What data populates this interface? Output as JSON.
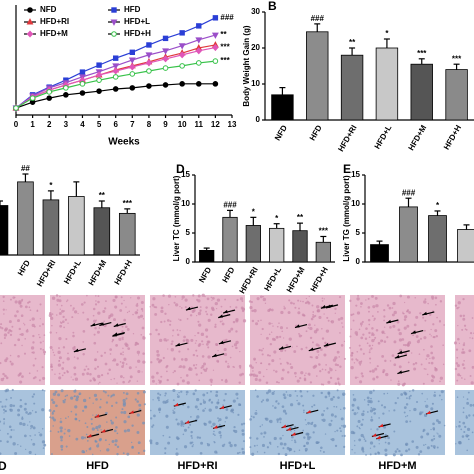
{
  "chart_data": [
    {
      "type": "line",
      "x_label": "Weeks",
      "x": [
        0,
        1,
        2,
        3,
        4,
        5,
        6,
        7,
        8,
        9,
        10,
        11,
        12
      ],
      "xlim": [
        0,
        13
      ],
      "xticks": [
        0,
        1,
        2,
        3,
        4,
        5,
        6,
        7,
        8,
        9,
        10,
        11,
        12,
        13
      ],
      "ylim": [
        15,
        45
      ],
      "series": [
        {
          "name": "NFD",
          "color": "#000000",
          "marker": "circle",
          "values": [
            16.9,
            18.5,
            19.6,
            20.5,
            21,
            21.5,
            22.1,
            22.4,
            22.9,
            23.2,
            23.5,
            23.5,
            23.5
          ]
        },
        {
          "name": "HFD",
          "color": "#2b3fd6",
          "marker": "square",
          "values": [
            16.9,
            20.5,
            22.6,
            24.5,
            26.7,
            28.6,
            30.5,
            32.1,
            34.1,
            35.9,
            37.4,
            39.3,
            41.5
          ],
          "end_label": "###"
        },
        {
          "name": "HFD+RI",
          "color": "#e0383c",
          "marker": "triangle",
          "values": [
            16.9,
            19.9,
            21.8,
            23.2,
            24.5,
            25.9,
            27.3,
            28.4,
            29.5,
            30.8,
            31.9,
            33.3,
            34.1
          ]
        },
        {
          "name": "HFD+L",
          "color": "#9b4fc9",
          "marker": "down",
          "values": [
            16.9,
            20.2,
            22.4,
            23.8,
            25.4,
            26.8,
            28.4,
            30,
            31.4,
            32.5,
            33.9,
            35.5,
            36.8
          ],
          "end_label": "**"
        },
        {
          "name": "HFD+M",
          "color": "#e056b8",
          "marker": "diamond",
          "values": [
            16.9,
            19.9,
            21.8,
            23.2,
            24.5,
            25.9,
            27,
            28.1,
            29.2,
            30.3,
            31.4,
            32.5,
            33.4
          ],
          "end_label": "***"
        },
        {
          "name": "HFD+H",
          "color": "#38c24a",
          "marker": "open",
          "values": [
            16.9,
            19.6,
            21.3,
            22.4,
            23.5,
            24.5,
            25.4,
            26.2,
            27,
            27.8,
            28.4,
            29.2,
            29.7
          ],
          "end_label": "***"
        }
      ]
    },
    {
      "type": "bar",
      "panel": "B",
      "y_label": "Body Weight Gain (g)",
      "categories": [
        "NFD",
        "HFD",
        "HFD+RI",
        "HFD+L",
        "HFD+M",
        "HFD+H"
      ],
      "values": [
        7,
        24.5,
        18,
        20,
        15.5,
        14
      ],
      "errors": [
        2,
        2.2,
        2,
        2.5,
        1.5,
        1.5
      ],
      "annotations": [
        null,
        "###",
        "**",
        "*",
        "***",
        "***"
      ],
      "colors": [
        "#000000",
        "#8c8c8c",
        "#6e6e6e",
        "#c8c8c8",
        "#555555",
        "#8a8a8a"
      ],
      "ylim": [
        0,
        30
      ],
      "yticks": [
        0,
        10,
        20,
        30
      ]
    },
    {
      "type": "bar",
      "categories": [
        null,
        "HFD",
        "HFD+RI",
        "HFD+L",
        "HFD+M",
        "HFD+H"
      ],
      "values": [
        4.4,
        6.5,
        4.9,
        5.2,
        4.2,
        3.7
      ],
      "errors": [
        0.4,
        0.7,
        0.8,
        1.3,
        0.6,
        0.4
      ],
      "annotations": [
        null,
        "##",
        "*",
        null,
        "**",
        "***"
      ],
      "colors": [
        "#000000",
        "#8c8c8c",
        "#6e6e6e",
        "#c8c8c8",
        "#555555",
        "#8a8a8a"
      ],
      "ylim": [
        0,
        8
      ]
    },
    {
      "type": "bar",
      "panel": "D",
      "y_label": "Liver TC (mmol/g port)",
      "categories": [
        "NFD",
        "HFD",
        "HFD+RI",
        "HFD+L",
        "HFD+M",
        "HFD+H"
      ],
      "values": [
        2,
        7.7,
        6.3,
        5.8,
        5.4,
        3.4
      ],
      "errors": [
        0.4,
        1.2,
        1.4,
        0.8,
        1.3,
        1
      ],
      "annotations": [
        null,
        "###",
        "*",
        "*",
        "**",
        "***"
      ],
      "colors": [
        "#000000",
        "#8c8c8c",
        "#6e6e6e",
        "#c8c8c8",
        "#555555",
        "#8a8a8a"
      ],
      "ylim": [
        0,
        15
      ],
      "yticks": [
        0,
        5,
        10,
        15
      ]
    },
    {
      "type": "bar",
      "panel": "E",
      "y_label": "Liver TG (mmol/g port)",
      "categories": [
        null,
        null,
        null,
        null
      ],
      "values": [
        3,
        9.5,
        8,
        5.6
      ],
      "errors": [
        0.6,
        1.5,
        0.8,
        0.8
      ],
      "annotations": [
        null,
        "###",
        "*",
        null
      ],
      "colors": [
        "#000000",
        "#8c8c8c",
        "#6e6e6e",
        "#c8c8c8"
      ],
      "ylim": [
        0,
        15
      ],
      "yticks": [
        0,
        5,
        10,
        15
      ]
    }
  ],
  "micrographs": {
    "panel": "D",
    "labels": [
      null,
      "HFD",
      "HFD+RI",
      "HFD+L",
      "HFD+M",
      null
    ]
  }
}
